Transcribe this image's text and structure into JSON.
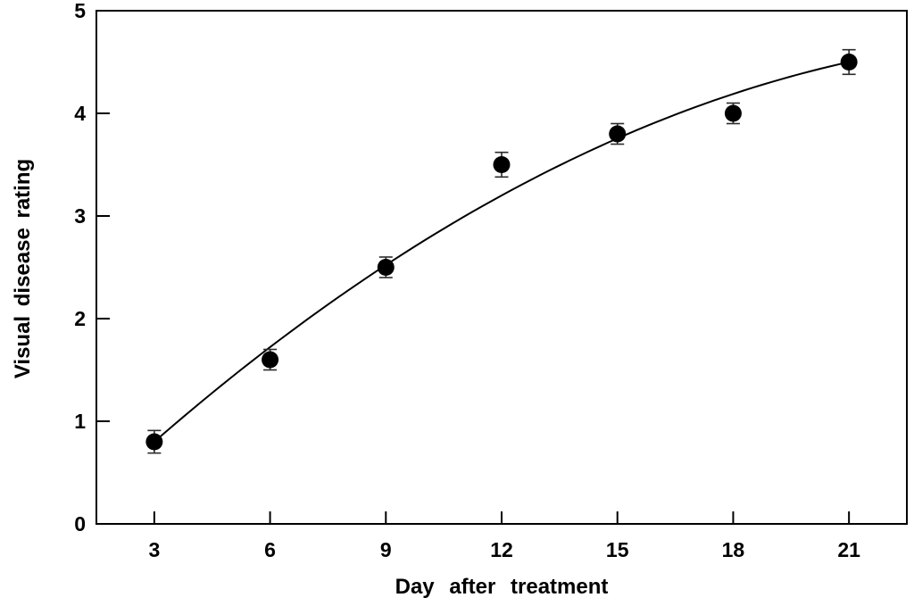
{
  "chart_data": {
    "type": "scatter",
    "title": "",
    "xlabel": "Day after treatment",
    "ylabel": "Visual disease rating",
    "x": [
      3,
      6,
      9,
      12,
      15,
      18,
      21
    ],
    "y": [
      0.8,
      1.6,
      2.5,
      3.5,
      3.8,
      4.0,
      4.5
    ],
    "yerr": [
      0.11,
      0.1,
      0.1,
      0.12,
      0.1,
      0.1,
      0.12
    ],
    "xlim": [
      1.5,
      22.5
    ],
    "ylim": [
      0,
      5
    ],
    "xticks": [
      3,
      6,
      9,
      12,
      15,
      18,
      21
    ],
    "yticks": [
      0,
      1,
      2,
      3,
      4,
      5
    ],
    "grid": false,
    "legend": null,
    "marker": {
      "shape": "circle",
      "color": "#000000",
      "radius": 9.5
    },
    "errorbar": {
      "color": "#2b2b2b",
      "cap_half_width": 7.5
    },
    "fit_curve": {
      "type": "quadratic",
      "coefficients": {
        "a": -0.00679,
        "b": 0.36853,
        "c": -0.24463
      },
      "x_start": 3,
      "x_end": 21,
      "color": "#000000"
    },
    "frame_color": "#000000",
    "background": "#ffffff",
    "text_color": "#000000"
  }
}
